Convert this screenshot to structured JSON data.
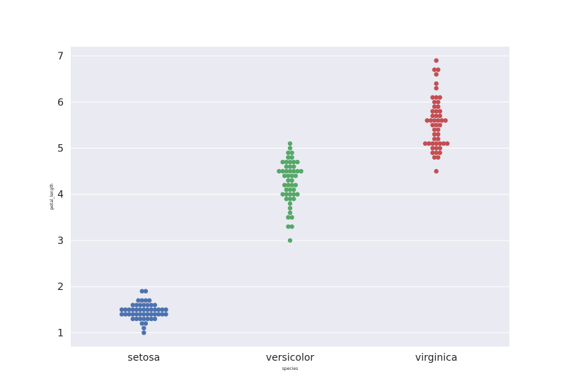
{
  "chart_data": {
    "type": "scatter",
    "subtype": "swarm",
    "xlabel": "species",
    "ylabel": "petal_length",
    "categories": [
      "setosa",
      "versicolor",
      "virginica"
    ],
    "ylim": [
      0.7,
      7.2
    ],
    "yticks": [
      1,
      2,
      3,
      4,
      5,
      6,
      7
    ],
    "grid": true,
    "colors": {
      "background": "#eaeaf2",
      "grid": "#ffffff",
      "setosa": "#4c72b0",
      "versicolor": "#55a868",
      "virginica": "#c44e52"
    },
    "series": [
      {
        "category": "setosa",
        "values": [
          1.4,
          1.4,
          1.3,
          1.5,
          1.4,
          1.7,
          1.4,
          1.5,
          1.4,
          1.5,
          1.5,
          1.6,
          1.4,
          1.1,
          1.2,
          1.5,
          1.3,
          1.4,
          1.7,
          1.5,
          1.7,
          1.5,
          1.0,
          1.7,
          1.9,
          1.6,
          1.6,
          1.5,
          1.4,
          1.6,
          1.6,
          1.5,
          1.5,
          1.4,
          1.5,
          1.2,
          1.3,
          1.4,
          1.3,
          1.5,
          1.3,
          1.3,
          1.3,
          1.6,
          1.9,
          1.4,
          1.6,
          1.4,
          1.5,
          1.4
        ]
      },
      {
        "category": "versicolor",
        "values": [
          4.7,
          4.5,
          4.9,
          4.0,
          4.6,
          4.5,
          4.7,
          3.3,
          4.6,
          3.9,
          3.5,
          4.2,
          4.0,
          4.7,
          3.6,
          4.4,
          4.5,
          4.1,
          4.5,
          3.9,
          4.8,
          4.0,
          4.9,
          4.7,
          4.3,
          4.4,
          4.8,
          5.0,
          4.5,
          3.5,
          3.8,
          3.7,
          3.9,
          5.1,
          4.5,
          4.5,
          4.7,
          4.4,
          4.1,
          4.0,
          4.4,
          4.6,
          4.0,
          3.3,
          4.2,
          4.2,
          4.2,
          4.3,
          3.0,
          4.1
        ]
      },
      {
        "category": "virginica",
        "values": [
          6.0,
          5.1,
          5.9,
          5.6,
          5.8,
          6.6,
          4.5,
          6.3,
          5.8,
          6.1,
          5.1,
          5.3,
          5.5,
          5.0,
          5.1,
          5.3,
          5.5,
          6.7,
          6.9,
          5.0,
          5.7,
          4.9,
          6.7,
          4.9,
          5.7,
          6.0,
          4.8,
          4.9,
          5.6,
          5.8,
          6.1,
          6.4,
          5.6,
          5.1,
          5.6,
          6.1,
          5.6,
          5.5,
          4.8,
          5.4,
          5.6,
          5.1,
          5.1,
          5.9,
          5.7,
          5.2,
          5.0,
          5.2,
          5.4,
          5.1
        ]
      }
    ]
  }
}
